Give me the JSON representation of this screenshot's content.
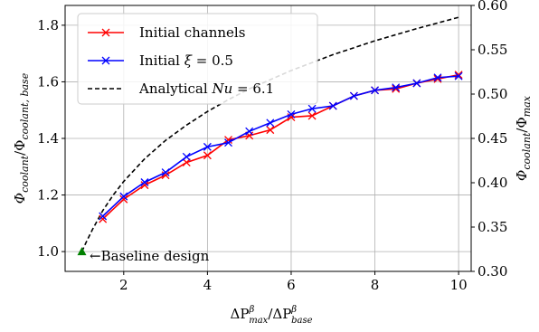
{
  "chart_data": {
    "type": "line",
    "xlabel": "ΔP^β_max / ΔP^β_base",
    "ylabel": "Φ_coolant / Φ_coolant,base",
    "y2label": "Φ_coolant / Φ_max",
    "xlim": [
      0.6,
      10.3
    ],
    "ylim": [
      0.93,
      1.87
    ],
    "y2lim": [
      0.3,
      0.6
    ],
    "xticks": [
      2,
      4,
      6,
      8,
      10
    ],
    "yticks": [
      1.0,
      1.2,
      1.4,
      1.6,
      1.8
    ],
    "y2ticks": [
      0.3,
      0.35,
      0.4,
      0.45,
      0.5,
      0.55,
      0.6
    ],
    "x_tick_labels": [
      "2",
      "4",
      "6",
      "8",
      "10"
    ],
    "y_tick_labels": [
      "1.0",
      "1.2",
      "1.4",
      "1.6",
      "1.8"
    ],
    "y2_tick_labels": [
      "0.30",
      "0.35",
      "0.40",
      "0.45",
      "0.50",
      "0.55",
      "0.60"
    ],
    "grid": true,
    "legend_position": "top-left",
    "series": [
      {
        "name": "Initial channels",
        "color": "#ff0000",
        "marker": "x",
        "x": [
          1.5,
          2.0,
          2.5,
          3.0,
          3.5,
          4.0,
          4.5,
          5.0,
          5.5,
          6.0,
          6.5,
          7.0,
          7.5,
          8.0,
          8.5,
          9.0,
          9.5,
          10.0
        ],
        "y": [
          1.115,
          1.185,
          1.235,
          1.27,
          1.315,
          1.34,
          1.395,
          1.41,
          1.43,
          1.475,
          1.48,
          1.515,
          1.55,
          1.57,
          1.575,
          1.595,
          1.61,
          1.625
        ]
      },
      {
        "name": "Initial ξ = 0.5",
        "color": "#0000ff",
        "marker": "x",
        "x": [
          1.5,
          2.0,
          2.5,
          3.0,
          3.5,
          4.0,
          4.5,
          5.0,
          5.5,
          6.0,
          6.5,
          7.0,
          7.5,
          8.0,
          8.5,
          9.0,
          9.5,
          10.0
        ],
        "y": [
          1.125,
          1.195,
          1.245,
          1.28,
          1.335,
          1.37,
          1.385,
          1.425,
          1.455,
          1.485,
          1.505,
          1.515,
          1.55,
          1.57,
          1.58,
          1.595,
          1.615,
          1.62
        ]
      },
      {
        "name": "Analytical Nu = 6.1",
        "color": "#000000",
        "style": "dashed",
        "x": [
          1.0,
          1.1,
          1.25,
          1.5,
          1.75,
          2.0,
          2.5,
          3.0,
          3.5,
          4.0,
          4.5,
          5.0,
          6.0,
          7.0,
          8.0,
          9.0,
          10.0
        ],
        "y": [
          1.0,
          1.032,
          1.077,
          1.145,
          1.2,
          1.248,
          1.328,
          1.393,
          1.447,
          1.495,
          1.537,
          1.575,
          1.64,
          1.696,
          1.745,
          1.788,
          1.828
        ]
      }
    ],
    "baseline_point": {
      "x": 1.0,
      "y": 1.0,
      "color": "#008000",
      "marker": "triangle"
    },
    "annotations": [
      {
        "text": "Baseline design",
        "x": 1.0,
        "y": 1.0
      }
    ]
  },
  "legend": {
    "items": [
      {
        "label": "Initial channels",
        "color": "#ff0000",
        "style": "solid",
        "marker": "x"
      },
      {
        "label": "Initial ξ = 0.5",
        "color": "#0000ff",
        "style": "solid",
        "marker": "x"
      },
      {
        "label": "Analytical Nu = 6.1",
        "color": "#000000",
        "style": "dashed",
        "marker": ""
      }
    ]
  },
  "axis_text": {
    "ylabel_main": "Φ",
    "ylabel_sub": "coolant",
    "ylabel_over": "/Φ",
    "ylabel_sub2": "coolant, base",
    "y2label_main": "Φ",
    "y2label_sub": "coolant",
    "y2label_over": "/Φ",
    "y2label_sub2": "max",
    "xlabel_delta": "ΔP",
    "xlabel_sup": "β",
    "xlabel_sub": "max",
    "xlabel_over": "/ΔP",
    "xlabel_sup2": "β",
    "xlabel_sub2": "base"
  },
  "annotation_text": "←Baseline design"
}
